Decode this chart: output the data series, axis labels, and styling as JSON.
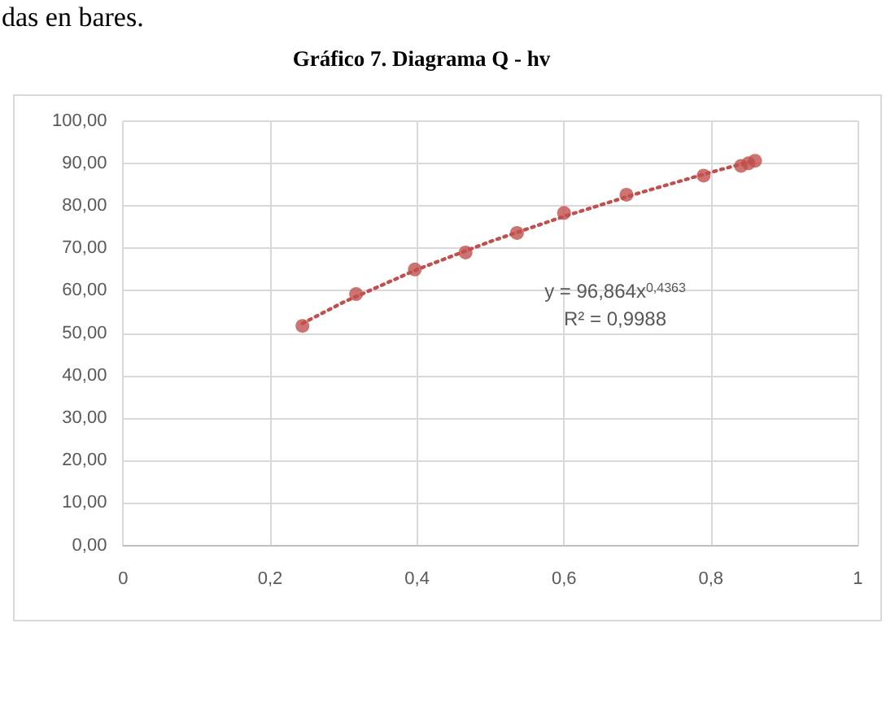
{
  "chart_data": {
    "type": "scatter",
    "title": "Gráfico 7. Diagrama Q - hv",
    "annotations": [
      "das en bares.",
      "y = 96,864x$^{0,4363}$",
      "R² = 0,9988"
    ],
    "xlim": [
      0,
      1
    ],
    "xticks": [
      0,
      {
        "value": 0.2,
        "label": "0,2"
      },
      {
        "value": 0.4,
        "label": "0,4"
      },
      {
        "value": 0.6,
        "label": "0,6"
      },
      {
        "value": 0.8,
        "label": "0,8"
      },
      1
    ],
    "ylim": [
      0,
      100
    ],
    "yticks": [
      {
        "value": 0,
        "label": "0,00"
      },
      {
        "value": 10,
        "label": "10,00"
      },
      {
        "value": 20,
        "label": "20,00"
      },
      {
        "value": 30,
        "label": "30,00"
      },
      {
        "value": 40,
        "label": "40,00"
      },
      {
        "value": 50,
        "label": "50,00"
      },
      {
        "value": 60,
        "label": "60,00"
      },
      {
        "value": 70,
        "label": "70,00"
      },
      {
        "value": 80,
        "label": "80,00"
      },
      {
        "value": 90,
        "label": "90,00"
      },
      {
        "value": 100,
        "label": "100,00"
      }
    ],
    "grid": true,
    "series": [
      {
        "color": "#c0504d",
        "marker": "circle",
        "x": [
          0.244,
          0.317,
          0.397,
          0.466,
          0.536,
          0.6,
          0.685,
          0.79,
          0.841,
          0.851,
          0.86
        ],
        "values": [
          51.7,
          59.2,
          65.0,
          69.0,
          73.6,
          78.3,
          82.6,
          87.1,
          89.4,
          90.0,
          90.6
        ]
      },
      {
        "type": "line",
        "color": "#c0504d",
        "line_style": "dotted",
        "marker": "none",
        "x": [
          0.244,
          0.3,
          0.4,
          0.5,
          0.6,
          0.7,
          0.8,
          0.86
        ],
        "values": [
          52.3,
          57.3,
          65.0,
          71.6,
          77.5,
          82.9,
          87.9,
          90.7
        ]
      }
    ]
  }
}
